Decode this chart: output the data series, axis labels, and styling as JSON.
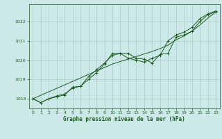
{
  "title": "Graphe pression niveau de la mer (hPa)",
  "bg_color": "#cce8e8",
  "grid_color": "#aacccc",
  "line_color": "#1a5e1a",
  "marker_color": "#1a5e1a",
  "xlim": [
    -0.5,
    23.5
  ],
  "ylim": [
    1017.5,
    1022.9
  ],
  "yticks": [
    1018,
    1019,
    1020,
    1021,
    1022
  ],
  "xticks": [
    0,
    1,
    2,
    3,
    4,
    5,
    6,
    7,
    8,
    9,
    10,
    11,
    12,
    13,
    14,
    15,
    16,
    17,
    18,
    19,
    20,
    21,
    22,
    23
  ],
  "series1": [
    1018.0,
    1017.8,
    1018.0,
    1018.1,
    1018.2,
    1018.6,
    1018.65,
    1019.0,
    1019.35,
    1019.8,
    1020.35,
    1020.35,
    1020.35,
    1020.1,
    1020.05,
    1019.85,
    1020.3,
    1020.35,
    1021.2,
    1021.3,
    1021.5,
    1022.0,
    1022.35,
    1022.5
  ],
  "series2": [
    1018.0,
    1017.8,
    1018.0,
    1018.15,
    1018.25,
    1018.55,
    1018.65,
    1019.15,
    1019.5,
    1019.85,
    1020.25,
    1020.35,
    1020.1,
    1020.0,
    1019.9,
    1020.1,
    1020.25,
    1021.0,
    1021.3,
    1021.45,
    1021.7,
    1022.15,
    1022.4,
    1022.55
  ],
  "series_straight": [
    1018.0,
    1018.18,
    1018.36,
    1018.54,
    1018.72,
    1018.9,
    1019.08,
    1019.26,
    1019.44,
    1019.62,
    1019.8,
    1019.93,
    1020.06,
    1020.19,
    1020.32,
    1020.45,
    1020.6,
    1020.78,
    1021.05,
    1021.25,
    1021.5,
    1021.82,
    1022.18,
    1022.5
  ]
}
